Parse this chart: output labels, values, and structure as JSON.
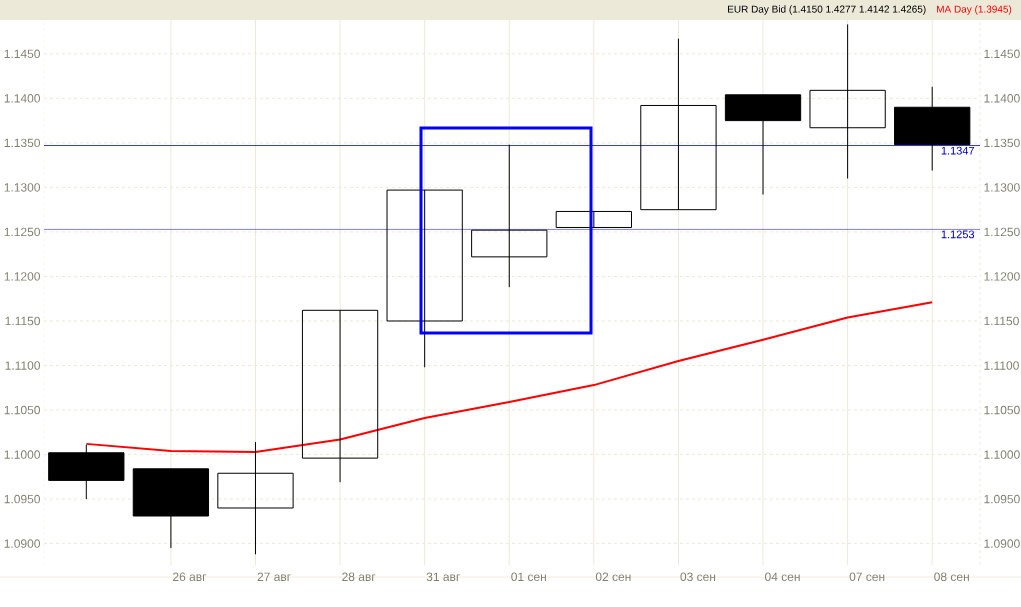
{
  "chart_data": {
    "type": "candlestick",
    "title": "EUR Day Bid (1.4150 1.4277 1.4142 1.4265)",
    "categories": [
      null,
      "26 авг",
      "27 авг",
      "28 авг",
      "31 авг",
      "01 сен",
      "02 сен",
      "03 сен",
      "04 сен",
      "07 сен",
      "08 сен"
    ],
    "ohlc": [
      [
        1.1002,
        1.1011,
        1.095,
        1.0971
      ],
      [
        1.0984,
        1.0984,
        1.0895,
        1.0931
      ],
      [
        1.094,
        1.1014,
        1.0888,
        1.0979
      ],
      [
        1.0996,
        1.1162,
        1.0969,
        1.1162
      ],
      [
        1.115,
        1.1297,
        1.1098,
        1.1297
      ],
      [
        1.1222,
        1.1348,
        1.1188,
        1.1252
      ],
      [
        1.1255,
        1.1273,
        1.1255,
        1.1273
      ],
      [
        1.1275,
        1.1467,
        1.1275,
        1.1392
      ],
      [
        1.1404,
        1.1404,
        1.1292,
        1.1375
      ],
      [
        1.1367,
        1.1483,
        1.131,
        1.1409
      ],
      [
        1.139,
        1.1413,
        1.1319,
        1.1348
      ]
    ],
    "series": [
      {
        "name": "MA Day (1.3945)",
        "type": "line",
        "color": "#ff0000",
        "values": [
          1.1012,
          1.1004,
          1.1003,
          1.1017,
          1.1041,
          1.1059,
          1.1078,
          1.1105,
          1.1129,
          1.1154,
          1.1171
        ]
      }
    ],
    "ylim": [
      1.0876,
      1.1488
    ],
    "yticks": [
      {
        "value": 1.09,
        "label": "1.0900"
      },
      {
        "value": 1.095,
        "label": "1.0950"
      },
      {
        "value": 1.1,
        "label": "1.1000"
      },
      {
        "value": 1.105,
        "label": "1.1050"
      },
      {
        "value": 1.11,
        "label": "1.1100"
      },
      {
        "value": 1.115,
        "label": "1.1150"
      },
      {
        "value": 1.12,
        "label": "1.1200"
      },
      {
        "value": 1.125,
        "label": "1.1250"
      },
      {
        "value": 1.13,
        "label": "1.1300"
      },
      {
        "value": 1.135,
        "label": "1.1350"
      },
      {
        "value": 1.14,
        "label": "1.1400"
      },
      {
        "value": 1.145,
        "label": "1.1450"
      }
    ],
    "y2lim": [
      1.0876,
      1.1488
    ],
    "y2ticks": [
      {
        "value": 1.09,
        "label": "1.0900"
      },
      {
        "value": 1.095,
        "label": "1.0950"
      },
      {
        "value": 1.1,
        "label": "1.1000"
      },
      {
        "value": 1.105,
        "label": "1.1050"
      },
      {
        "value": 1.11,
        "label": "1.1100"
      },
      {
        "value": 1.115,
        "label": "1.1150"
      },
      {
        "value": 1.12,
        "label": "1.1200"
      },
      {
        "value": 1.125,
        "label": "1.1250"
      },
      {
        "value": 1.13,
        "label": "1.1300"
      },
      {
        "value": 1.135,
        "label": "1.1350"
      },
      {
        "value": 1.14,
        "label": "1.1400"
      },
      {
        "value": 1.145,
        "label": "1.1450"
      }
    ],
    "ref_lines": [
      {
        "axis": "y",
        "value": 1.1347,
        "label": "1.1347",
        "color": "#0000cc"
      },
      {
        "axis": "y",
        "value": 1.1253,
        "label": "1.1253",
        "color": "#0000cc"
      }
    ],
    "grid": true
  }
}
